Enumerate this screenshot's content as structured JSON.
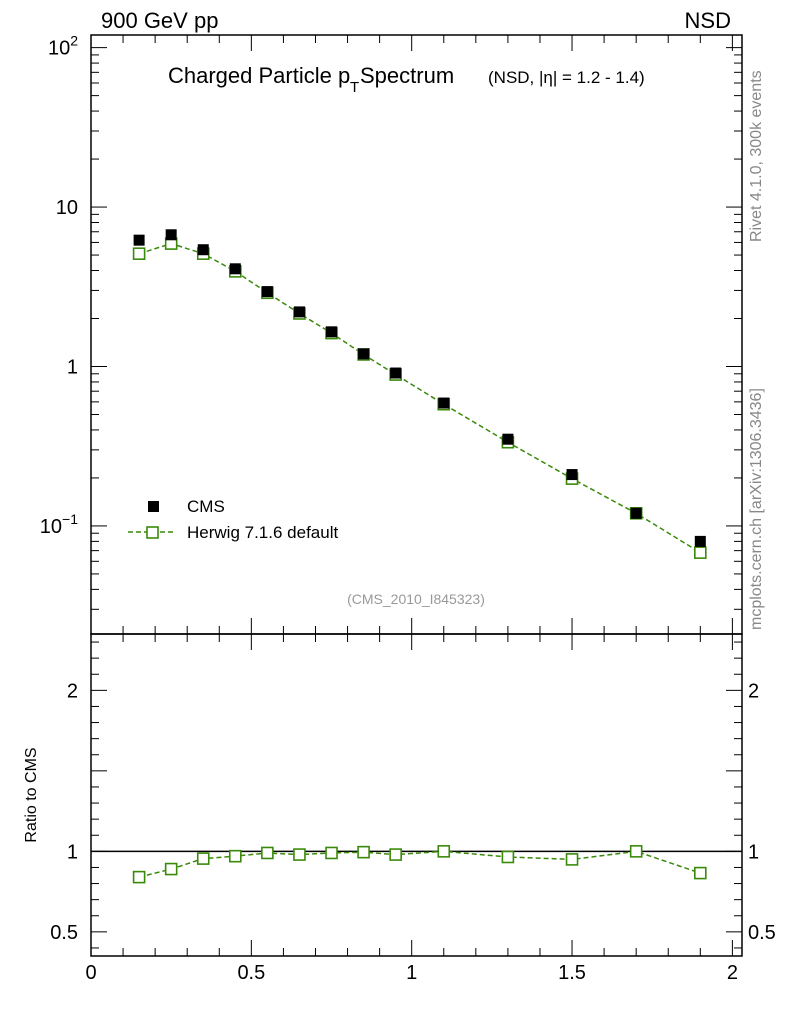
{
  "header": {
    "left": "900 GeV pp",
    "right": "NSD"
  },
  "title": {
    "main_prefix": "Charged Particle p",
    "main_sub": "T",
    "main_suffix": " Spectrum",
    "qualifier": "(NSD, |η| = 1.2 - 1.4)"
  },
  "side_labels": {
    "rivet": "Rivet 4.1.0,  300k events",
    "mcplots": "mcplots.cern.ch [arXiv:1306.3436]"
  },
  "analysis_id": "(CMS_2010_I845323)",
  "colors": {
    "data": "#000000",
    "mc": "#3a8a0a",
    "faint_text": "#999999"
  },
  "chart_data": [
    {
      "type": "scatter",
      "name": "main",
      "yscale": "log",
      "xlim": [
        0,
        2.03
      ],
      "ylim": [
        0.021,
        120
      ],
      "y_ticks": [
        {
          "value": 0.1,
          "base": "10",
          "exp": "−1"
        },
        {
          "value": 1,
          "base": "1",
          "exp": ""
        },
        {
          "value": 10,
          "base": "10",
          "exp": ""
        },
        {
          "value": 100,
          "base": "10",
          "exp": "2"
        }
      ],
      "series": [
        {
          "name": "CMS",
          "style": "filled-square",
          "x": [
            0.15,
            0.25,
            0.35,
            0.45,
            0.55,
            0.65,
            0.75,
            0.85,
            0.95,
            1.1,
            1.3,
            1.5,
            1.7,
            1.9
          ],
          "values": [
            6.2,
            6.7,
            5.4,
            4.1,
            2.95,
            2.2,
            1.65,
            1.2,
            0.91,
            0.59,
            0.35,
            0.21,
            0.12,
            0.08
          ]
        },
        {
          "name": "Herwig 7.1.6 default",
          "style": "open-square-dashed",
          "x": [
            0.15,
            0.25,
            0.35,
            0.45,
            0.55,
            0.65,
            0.75,
            0.85,
            0.95,
            1.1,
            1.3,
            1.5,
            1.7,
            1.9
          ],
          "values": [
            5.1,
            5.9,
            5.1,
            3.95,
            2.9,
            2.15,
            1.62,
            1.19,
            0.89,
            0.58,
            0.335,
            0.198,
            0.12,
            0.068
          ]
        }
      ],
      "legend": [
        "CMS",
        "Herwig 7.1.6 default"
      ]
    },
    {
      "type": "line",
      "name": "ratio",
      "ylabel": "Ratio to CMS",
      "xlim": [
        0,
        2.03
      ],
      "ylim": [
        0.35,
        2.35
      ],
      "x_ticks": [
        {
          "value": 0,
          "label": "0"
        },
        {
          "value": 0.5,
          "label": "0.5"
        },
        {
          "value": 1,
          "label": "1"
        },
        {
          "value": 1.5,
          "label": "1.5"
        },
        {
          "value": 2,
          "label": "2"
        }
      ],
      "y_ticks": [
        {
          "value": 0.5,
          "label": "0.5"
        },
        {
          "value": 1,
          "label": "1"
        },
        {
          "value": 2,
          "label": "2"
        }
      ],
      "reference_line": 1,
      "series": [
        {
          "name": "Herwig 7.1.6 default",
          "x": [
            0.15,
            0.25,
            0.35,
            0.45,
            0.55,
            0.65,
            0.75,
            0.85,
            0.95,
            1.1,
            1.3,
            1.5,
            1.7,
            1.9
          ],
          "values": [
            0.84,
            0.89,
            0.955,
            0.97,
            0.99,
            0.98,
            0.99,
            0.995,
            0.98,
            1.0,
            0.965,
            0.95,
            1.0,
            0.865
          ]
        }
      ]
    }
  ]
}
